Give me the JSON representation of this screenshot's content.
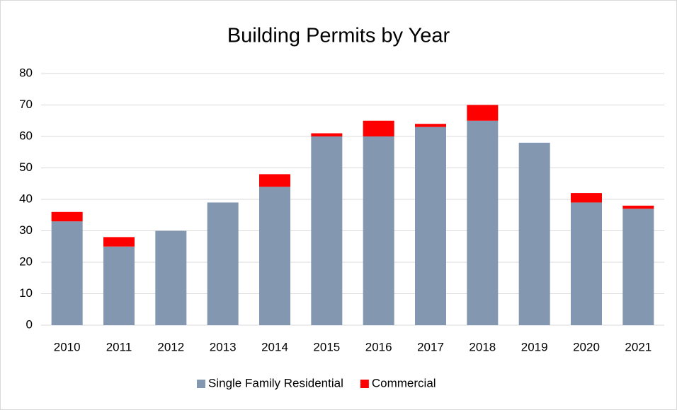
{
  "chart_data": {
    "type": "stacked_bar",
    "title": "Building Permits by Year",
    "categories": [
      "2010",
      "2011",
      "2012",
      "2013",
      "2014",
      "2015",
      "2016",
      "2017",
      "2018",
      "2019",
      "2020",
      "2021"
    ],
    "series": [
      {
        "name": "Single Family Residential",
        "color": "#8497b0",
        "values": [
          33,
          25,
          30,
          39,
          44,
          60,
          60,
          63,
          65,
          58,
          39,
          37
        ]
      },
      {
        "name": "Commercial",
        "color": "#ff0000",
        "values": [
          3,
          3,
          0,
          0,
          4,
          1,
          5,
          1,
          5,
          0,
          3,
          1
        ]
      }
    ],
    "ylim": [
      0,
      80
    ],
    "yticks": [
      0,
      10,
      20,
      30,
      40,
      50,
      60,
      70,
      80
    ],
    "grid": true,
    "legend": "bottom"
  }
}
